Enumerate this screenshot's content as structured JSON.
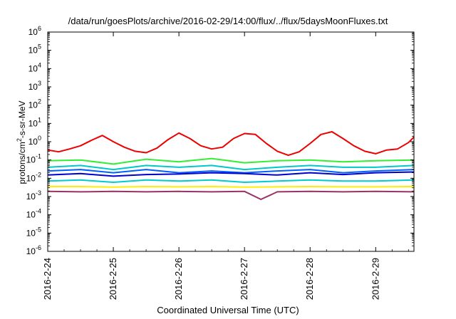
{
  "title": "/data/run/goesPlots/archive/2016-02-29/14:00/flux/../flux/5daysMoonFluxes.txt",
  "xlabel": "Coordinated Universal Time (UTC)",
  "ylabel": {
    "pre": "protons/cm",
    "sup": "2",
    "post": "-s-sr-MeV"
  },
  "chart_data": {
    "type": "line",
    "title": "/data/run/goesPlots/archive/2016-02-29/14:00/flux/../flux/5daysMoonFluxes.txt",
    "xlabel": "Coordinated Universal Time (UTC)",
    "ylabel": "protons/cm2-s-sr-MeV",
    "yscale": "log",
    "ylim": [
      1e-06,
      1000000.0
    ],
    "xlim": [
      "2016-02-24T00:00",
      "2016-02-29T14:00"
    ],
    "grid": false,
    "x_ticks": [
      "2016-2-24",
      "2016-2-25",
      "2016-2-26",
      "2016-2-27",
      "2016-2-28",
      "2016-2-29"
    ],
    "y_ticks": [
      {
        "base": "10",
        "exp": "-6"
      },
      {
        "base": "10",
        "exp": "-5"
      },
      {
        "base": "10",
        "exp": "-4"
      },
      {
        "base": "10",
        "exp": "-3"
      },
      {
        "base": "10",
        "exp": "-2"
      },
      {
        "base": "10",
        "exp": "-1"
      },
      {
        "base": "10",
        "exp": "0"
      },
      {
        "base": "10",
        "exp": "1"
      },
      {
        "base": "10",
        "exp": "2"
      },
      {
        "base": "10",
        "exp": "3"
      },
      {
        "base": "10",
        "exp": "4"
      },
      {
        "base": "10",
        "exp": "5"
      },
      {
        "base": "10",
        "exp": "6"
      }
    ],
    "series": [
      {
        "color": "#ee0000",
        "x": [
          "2016-02-24T00:00",
          "2016-02-24T04:00",
          "2016-02-24T08:00",
          "2016-02-24T12:00",
          "2016-02-24T16:00",
          "2016-02-24T20:00",
          "2016-02-25T00:00",
          "2016-02-25T04:00",
          "2016-02-25T08:00",
          "2016-02-25T12:00",
          "2016-02-25T16:00",
          "2016-02-25T20:00",
          "2016-02-26T00:00",
          "2016-02-26T04:00",
          "2016-02-26T08:00",
          "2016-02-26T12:00",
          "2016-02-26T16:00",
          "2016-02-26T20:00",
          "2016-02-27T00:00",
          "2016-02-27T04:00",
          "2016-02-27T08:00",
          "2016-02-27T12:00",
          "2016-02-27T16:00",
          "2016-02-27T20:00",
          "2016-02-28T00:00",
          "2016-02-28T04:00",
          "2016-02-28T08:00",
          "2016-02-28T12:00",
          "2016-02-28T16:00",
          "2016-02-28T20:00",
          "2016-02-29T00:00",
          "2016-02-29T04:00",
          "2016-02-29T08:00",
          "2016-02-29T12:00",
          "2016-02-29T14:00"
        ],
        "y": [
          0.35,
          0.28,
          0.4,
          0.6,
          1.2,
          2.2,
          1.0,
          0.5,
          0.3,
          0.25,
          0.45,
          1.3,
          3.0,
          1.5,
          0.6,
          0.4,
          0.5,
          1.5,
          2.8,
          2.5,
          0.8,
          0.3,
          0.18,
          0.28,
          0.8,
          2.5,
          3.5,
          1.5,
          0.6,
          0.3,
          0.22,
          0.35,
          0.4,
          0.9,
          1.8
        ]
      },
      {
        "color": "#33ee33",
        "x": [
          "2016-02-24T00:00",
          "2016-02-24T12:00",
          "2016-02-25T00:00",
          "2016-02-25T12:00",
          "2016-02-26T00:00",
          "2016-02-26T12:00",
          "2016-02-27T00:00",
          "2016-02-27T12:00",
          "2016-02-28T00:00",
          "2016-02-28T12:00",
          "2016-02-29T00:00",
          "2016-02-29T14:00"
        ],
        "y": [
          0.09,
          0.1,
          0.06,
          0.11,
          0.08,
          0.12,
          0.07,
          0.09,
          0.1,
          0.08,
          0.09,
          0.1
        ]
      },
      {
        "color": "#00c8c8",
        "x": [
          "2016-02-24T00:00",
          "2016-02-24T12:00",
          "2016-02-25T00:00",
          "2016-02-25T12:00",
          "2016-02-26T00:00",
          "2016-02-26T12:00",
          "2016-02-27T00:00",
          "2016-02-27T12:00",
          "2016-02-28T00:00",
          "2016-02-28T12:00",
          "2016-02-29T00:00",
          "2016-02-29T14:00"
        ],
        "y": [
          0.04,
          0.05,
          0.03,
          0.05,
          0.04,
          0.05,
          0.03,
          0.04,
          0.05,
          0.04,
          0.04,
          0.05
        ]
      },
      {
        "color": "#0060ff",
        "x": [
          "2016-02-24T00:00",
          "2016-02-24T12:00",
          "2016-02-25T00:00",
          "2016-02-25T12:00",
          "2016-02-26T00:00",
          "2016-02-26T12:00",
          "2016-02-27T00:00",
          "2016-02-27T12:00",
          "2016-02-28T00:00",
          "2016-02-28T12:00",
          "2016-02-29T00:00",
          "2016-02-29T14:00"
        ],
        "y": [
          0.025,
          0.03,
          0.02,
          0.03,
          0.02,
          0.025,
          0.02,
          0.025,
          0.03,
          0.02,
          0.025,
          0.03
        ]
      },
      {
        "color": "#0000cc",
        "x": [
          "2016-02-24T00:00",
          "2016-02-24T12:00",
          "2016-02-25T00:00",
          "2016-02-25T12:00",
          "2016-02-26T00:00",
          "2016-02-26T12:00",
          "2016-02-27T00:00",
          "2016-02-27T12:00",
          "2016-02-28T00:00",
          "2016-02-28T12:00",
          "2016-02-29T00:00",
          "2016-02-29T14:00"
        ],
        "y": [
          0.015,
          0.018,
          0.013,
          0.016,
          0.017,
          0.02,
          0.018,
          0.015,
          0.02,
          0.016,
          0.02,
          0.022
        ]
      },
      {
        "color": "#00cccc",
        "x": [
          "2016-02-24T00:00",
          "2016-02-24T12:00",
          "2016-02-25T00:00",
          "2016-02-25T12:00",
          "2016-02-26T00:00",
          "2016-02-26T12:00",
          "2016-02-27T00:00",
          "2016-02-27T12:00",
          "2016-02-28T00:00",
          "2016-02-28T12:00",
          "2016-02-29T00:00",
          "2016-02-29T14:00"
        ],
        "y": [
          0.007,
          0.008,
          0.006,
          0.008,
          0.007,
          0.008,
          0.006,
          0.007,
          0.008,
          0.007,
          0.007,
          0.008
        ]
      },
      {
        "color": "#ffee00",
        "x": [
          "2016-02-24T00:00",
          "2016-02-24T12:00",
          "2016-02-25T00:00",
          "2016-02-25T12:00",
          "2016-02-26T00:00",
          "2016-02-26T12:00",
          "2016-02-27T00:00",
          "2016-02-27T12:00",
          "2016-02-28T00:00",
          "2016-02-28T12:00",
          "2016-02-29T00:00",
          "2016-02-29T14:00"
        ],
        "y": [
          0.0035,
          0.0035,
          0.0033,
          0.0035,
          0.0034,
          0.0035,
          0.0033,
          0.0034,
          0.0035,
          0.0034,
          0.0034,
          0.0035
        ]
      },
      {
        "color": "#993366",
        "x": [
          "2016-02-24T00:00",
          "2016-02-24T12:00",
          "2016-02-25T00:00",
          "2016-02-25T12:00",
          "2016-02-26T00:00",
          "2016-02-26T12:00",
          "2016-02-27T00:00",
          "2016-02-27T06:00",
          "2016-02-27T12:00",
          "2016-02-28T00:00",
          "2016-02-28T12:00",
          "2016-02-29T00:00",
          "2016-02-29T14:00"
        ],
        "y": [
          0.0019,
          0.0018,
          0.0019,
          0.0018,
          0.0019,
          0.0018,
          0.0019,
          0.0007,
          0.0018,
          0.0019,
          0.0018,
          0.0019,
          0.0018
        ]
      }
    ]
  }
}
